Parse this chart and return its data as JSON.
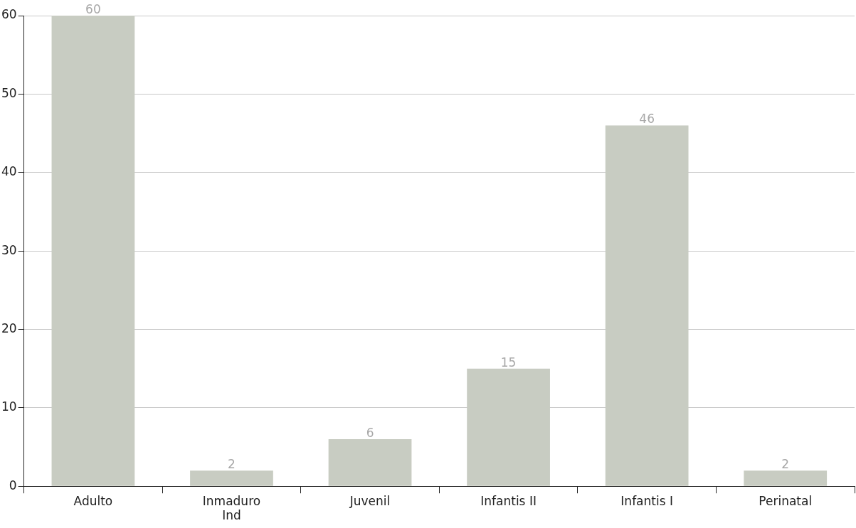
{
  "chart_data": {
    "type": "bar",
    "categories": [
      "Adulto",
      "Inmaduro\nInd",
      "Juvenil",
      "Infantis II",
      "Infantis I",
      "Perinatal"
    ],
    "values": [
      60,
      2,
      6,
      15,
      46,
      2
    ],
    "color": "#c8ccc2",
    "ylim": [
      0,
      60
    ],
    "yticks": [
      0,
      10,
      20,
      30,
      40,
      50,
      60
    ],
    "grid": "y",
    "data_labels": true
  }
}
